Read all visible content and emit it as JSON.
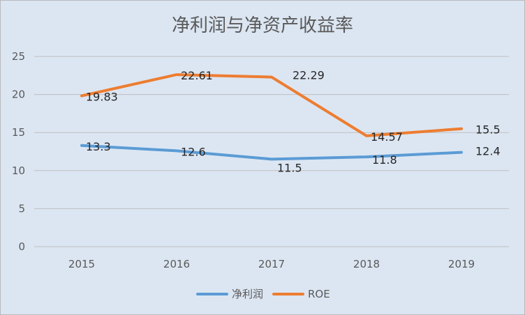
{
  "chart_data": {
    "type": "line",
    "title": "净利润与净资产收益率",
    "categories": [
      "2015",
      "2016",
      "2017",
      "2018",
      "2019"
    ],
    "series": [
      {
        "name": "净利润",
        "values": [
          13.3,
          12.6,
          11.5,
          11.8,
          12.4
        ],
        "color": "#5b9bd5",
        "labels": [
          "13.3",
          "12.6",
          "11.5",
          "11.8",
          "12.4"
        ]
      },
      {
        "name": "ROE",
        "values": [
          19.83,
          22.61,
          22.29,
          14.57,
          15.5
        ],
        "color": "#ed7d31",
        "labels": [
          "19.83",
          "22.61",
          "22.29",
          "14.57",
          "15.5"
        ]
      }
    ],
    "ylim": [
      0,
      25
    ],
    "yticks": [
      "0",
      "5",
      "10",
      "15",
      "20",
      "25"
    ],
    "grid": true,
    "legend_position": "bottom"
  }
}
